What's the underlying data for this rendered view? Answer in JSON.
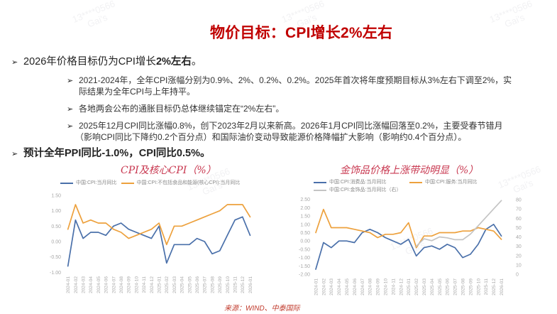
{
  "slide": {
    "title": "物价目标：CPI增长2%左右",
    "bullet_icon": "➢",
    "bullets": [
      {
        "text_pre": "2026年价格目标仍为CPI增长",
        "text_bold": "2%左右",
        "text_post": "。",
        "sub": [
          {
            "line1": "2021-2024年，全年CPI涨幅分别为0.9%、2%、0.2%、0.2%。2025年首次将年度预期目标从3%左右下调至2%，实",
            "line2": "际结果为全年CPI与上年持平。"
          },
          {
            "line1": "各地两会公布的通胀目标仍总体继续锚定在“2%左右”。"
          },
          {
            "line1": "2025年12月CPI同比涨幅0.8%，创下2023年2月以来新高。2026年1月CPI同比涨幅回落至0.2%，主要受春节错月",
            "line2": "（影响CPI同比下降约0.2个百分点）和国际油价变动导致能源价格降幅扩大影响（影响约0.4个百分点）。"
          }
        ]
      },
      {
        "text_bold": "预计全年PPI同比-1.0%，CPI同比0.5%。"
      }
    ],
    "source": "来源：WIND、中泰国际",
    "watermark": {
      "line1": "13****0566",
      "line2": "Gai's"
    }
  },
  "chart_data": [
    {
      "type": "line",
      "title": "CPI及核心CPI（%）",
      "xlabel": "",
      "ylabel": "%",
      "ylim": [
        -1.0,
        1.5
      ],
      "yticks": [
        "1.50",
        "1.00",
        "0.50",
        "0.00",
        "-0.50",
        "-1.00"
      ],
      "grid": false,
      "legend_position": "top",
      "categories": [
        "2024-01",
        "2024-02",
        "2024-03",
        "2024-04",
        "2024-05",
        "2024-06",
        "2024-07",
        "2024-08",
        "2024-09",
        "2024-10",
        "2024-11",
        "2024-12",
        "2025-01",
        "2025-02",
        "2025-03",
        "2025-04",
        "2025-05",
        "2025-06",
        "2025-07",
        "2025-08",
        "2025-09",
        "2025-10",
        "2025-11",
        "2025-12",
        "2026-01"
      ],
      "series": [
        {
          "name": "中国:CPI:当月同比",
          "color": "#4a70aa",
          "axis": "left",
          "values": [
            -0.8,
            0.7,
            0.1,
            0.3,
            0.3,
            0.2,
            0.5,
            0.6,
            0.4,
            0.3,
            0.2,
            0.1,
            0.5,
            -0.7,
            -0.1,
            -0.1,
            -0.1,
            0.1,
            0.0,
            -0.4,
            -0.3,
            0.2,
            0.7,
            0.8,
            0.2
          ]
        },
        {
          "name": "中国:CPI:不包括食品和能源(核心CPI):当月同比",
          "color": "#eda13d",
          "axis": "left",
          "values": [
            0.4,
            1.2,
            0.6,
            0.7,
            0.6,
            0.6,
            0.4,
            0.3,
            0.1,
            0.2,
            0.3,
            0.4,
            0.6,
            -0.1,
            0.5,
            0.5,
            0.6,
            0.7,
            0.8,
            0.9,
            1.0,
            1.2,
            1.2,
            1.2,
            0.8
          ]
        }
      ]
    },
    {
      "type": "line",
      "title": "金饰品价格上涨带动明显（%）",
      "xlabel": "",
      "ylabel": "%",
      "ylim": [
        -2.0,
        2.5
      ],
      "yticks": [
        "2.50",
        "2.00",
        "1.50",
        "1.00",
        "0.50",
        "0.00",
        "-0.50",
        "-1.00",
        "-1.50",
        "-2.00"
      ],
      "y2lim": [
        0,
        80
      ],
      "y2ticks": [
        "80",
        "70",
        "60",
        "50",
        "40",
        "30",
        "20",
        "10",
        "0"
      ],
      "grid": false,
      "legend_position": "top",
      "categories": [
        "2024-01",
        "2024-02",
        "2024-03",
        "2024-04",
        "2024-05",
        "2024-06",
        "2024-07",
        "2024-08",
        "2024-09",
        "2024-10",
        "2024-11",
        "2024-12",
        "2025-01",
        "2025-02",
        "2025-03",
        "2025-04",
        "2025-05",
        "2025-06",
        "2025-07",
        "2025-08",
        "2025-09",
        "2025-10",
        "2025-11",
        "2025-12",
        "2026-01"
      ],
      "series": [
        {
          "name": "中国:CPI:消费品:当月同比",
          "color": "#4a70aa",
          "axis": "left",
          "values": [
            -1.7,
            -0.1,
            -0.4,
            0.0,
            0.0,
            -0.1,
            0.5,
            0.7,
            0.5,
            0.2,
            0.0,
            -0.2,
            0.1,
            -0.9,
            -0.4,
            -0.3,
            -0.5,
            -0.2,
            -0.4,
            -1.0,
            -0.8,
            -0.2,
            0.7,
            1.0,
            0.3
          ]
        },
        {
          "name": "中国:CPI:服务:当月同比",
          "color": "#eda13d",
          "axis": "left",
          "values": [
            0.5,
            1.9,
            0.8,
            0.8,
            0.8,
            0.7,
            0.6,
            0.5,
            0.2,
            0.4,
            0.4,
            0.5,
            1.1,
            -0.4,
            0.3,
            0.3,
            0.5,
            0.5,
            0.5,
            0.6,
            0.6,
            0.8,
            0.7,
            0.6,
            0.1
          ]
        },
        {
          "name": "中国:CPI:金饰品:当月同比（右）",
          "color": "#c4c4c4",
          "axis": "right",
          "values": [
            null,
            null,
            null,
            null,
            null,
            null,
            null,
            null,
            null,
            null,
            null,
            null,
            null,
            30,
            38,
            36,
            40,
            39,
            37,
            37,
            43,
            52,
            61,
            70,
            79
          ]
        }
      ]
    }
  ]
}
